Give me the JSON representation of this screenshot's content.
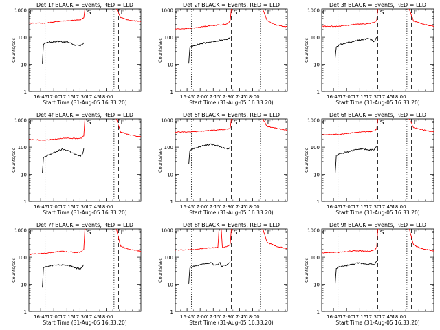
{
  "chart_data": [
    {
      "type": "line",
      "title": "Det 1f BLACK = Events, RED = LLD",
      "xlabel": "Start Time (31-Aug-05 16:33:20)",
      "ylabel": "Counts/sec",
      "x_ticks": [
        "16:45",
        "17:00",
        "17:15",
        "17:30",
        "17:45",
        "18:00"
      ],
      "y_ticks": [
        "1",
        "10",
        "100",
        "1000"
      ],
      "ylog": true,
      "ylim": [
        1,
        1100
      ],
      "markers": [
        "E",
        "S",
        "E"
      ],
      "series": [
        {
          "color": "#000000"
        },
        {
          "color": "#ff0000"
        }
      ]
    },
    {
      "type": "line",
      "title": "Det 2f BLACK = Events, RED = LLD",
      "xlabel": "Start Time (31-Aug-05 16:33:20)",
      "ylabel": "Counts/sec",
      "x_ticks": [
        "16:45",
        "17:00",
        "17:15",
        "17:30",
        "17:45",
        "18:00"
      ],
      "y_ticks": [
        "1",
        "10",
        "100",
        "1000"
      ],
      "ylog": true,
      "ylim": [
        1,
        1100
      ],
      "markers": [
        "E",
        "S",
        "E"
      ],
      "series": [
        {
          "color": "#000000"
        },
        {
          "color": "#ff0000"
        }
      ]
    },
    {
      "type": "line",
      "title": "Det 3f BLACK = Events, RED = LLD",
      "xlabel": "Start Time (31-Aug-05 16:33:20)",
      "ylabel": "Counts/sec",
      "x_ticks": [
        "16:45",
        "17:00",
        "17:15",
        "17:30",
        "17:45",
        "18:00"
      ],
      "y_ticks": [
        "1",
        "10",
        "100",
        "1000"
      ],
      "ylog": true,
      "ylim": [
        1,
        1100
      ],
      "markers": [
        "E",
        "S",
        "E"
      ],
      "series": [
        {
          "color": "#000000"
        },
        {
          "color": "#ff0000"
        }
      ]
    },
    {
      "type": "line",
      "title": "Det 4f BLACK = Events, RED = LLD",
      "xlabel": "Start Time (31-Aug-05 16:33:20)",
      "ylabel": "Counts/sec",
      "x_ticks": [
        "16:45",
        "17:00",
        "17:15",
        "17:30",
        "17:45",
        "18:00"
      ],
      "y_ticks": [
        "1",
        "10",
        "100",
        "1000"
      ],
      "ylog": true,
      "ylim": [
        1,
        1100
      ],
      "markers": [
        "E",
        "S",
        "E"
      ],
      "series": [
        {
          "color": "#000000"
        },
        {
          "color": "#ff0000"
        }
      ]
    },
    {
      "type": "line",
      "title": "Det 5f BLACK = Events, RED = LLD",
      "xlabel": "Start Time (31-Aug-05 16:33:20)",
      "ylabel": "Counts/sec",
      "x_ticks": [
        "16:45",
        "17:00",
        "17:15",
        "17:30",
        "17:45",
        "18:00"
      ],
      "y_ticks": [
        "1",
        "10",
        "100",
        "1000"
      ],
      "ylog": true,
      "ylim": [
        1,
        1100
      ],
      "markers": [
        "E",
        "S",
        "E"
      ],
      "series": [
        {
          "color": "#000000"
        },
        {
          "color": "#ff0000"
        }
      ]
    },
    {
      "type": "line",
      "title": "Det 6f BLACK = Events, RED = LLD",
      "xlabel": "Start Time (31-Aug-05 16:33:20)",
      "ylabel": "Counts/sec",
      "x_ticks": [
        "16:45",
        "17:00",
        "17:15",
        "17:30",
        "17:45",
        "18:00"
      ],
      "y_ticks": [
        "1",
        "10",
        "100",
        "1000"
      ],
      "ylog": true,
      "ylim": [
        1,
        1100
      ],
      "markers": [
        "E",
        "S",
        "E"
      ],
      "series": [
        {
          "color": "#000000"
        },
        {
          "color": "#ff0000"
        }
      ]
    },
    {
      "type": "line",
      "title": "Det 7f BLACK = Events, RED = LLD",
      "xlabel": "Start Time (31-Aug-05 16:33:20)",
      "ylabel": "Counts/sec",
      "x_ticks": [
        "16:45",
        "17:00",
        "17:15",
        "17:30",
        "17:45",
        "18:00"
      ],
      "y_ticks": [
        "1",
        "10",
        "100",
        "1000"
      ],
      "ylog": true,
      "ylim": [
        1,
        1100
      ],
      "markers": [
        "E",
        "S",
        "E"
      ],
      "series": [
        {
          "color": "#000000"
        },
        {
          "color": "#ff0000"
        }
      ]
    },
    {
      "type": "line",
      "title": "Det 8f BLACK = Events, RED = LLD",
      "xlabel": "Start Time (31-Aug-05 16:33:20)",
      "ylabel": "Counts/sec",
      "x_ticks": [
        "16:45",
        "17:00",
        "17:15",
        "17:30",
        "17:45",
        "18:00"
      ],
      "y_ticks": [
        "1",
        "10",
        "100",
        "1000"
      ],
      "ylog": true,
      "ylim": [
        1,
        1100
      ],
      "markers": [
        "E",
        "S",
        "E"
      ],
      "series": [
        {
          "color": "#000000"
        },
        {
          "color": "#ff0000"
        }
      ]
    },
    {
      "type": "line",
      "title": "Det 9f BLACK = Events, RED = LLD",
      "xlabel": "Start Time (31-Aug-05 16:33:20)",
      "ylabel": "Counts/sec",
      "x_ticks": [
        "16:45",
        "17:00",
        "17:15",
        "17:30",
        "17:45",
        "18:00"
      ],
      "y_ticks": [
        "1",
        "10",
        "100",
        "1000"
      ],
      "ylog": true,
      "ylim": [
        1,
        1100
      ],
      "markers": [
        "E",
        "S",
        "E"
      ],
      "series": [
        {
          "color": "#000000"
        },
        {
          "color": "#ff0000"
        }
      ]
    }
  ]
}
